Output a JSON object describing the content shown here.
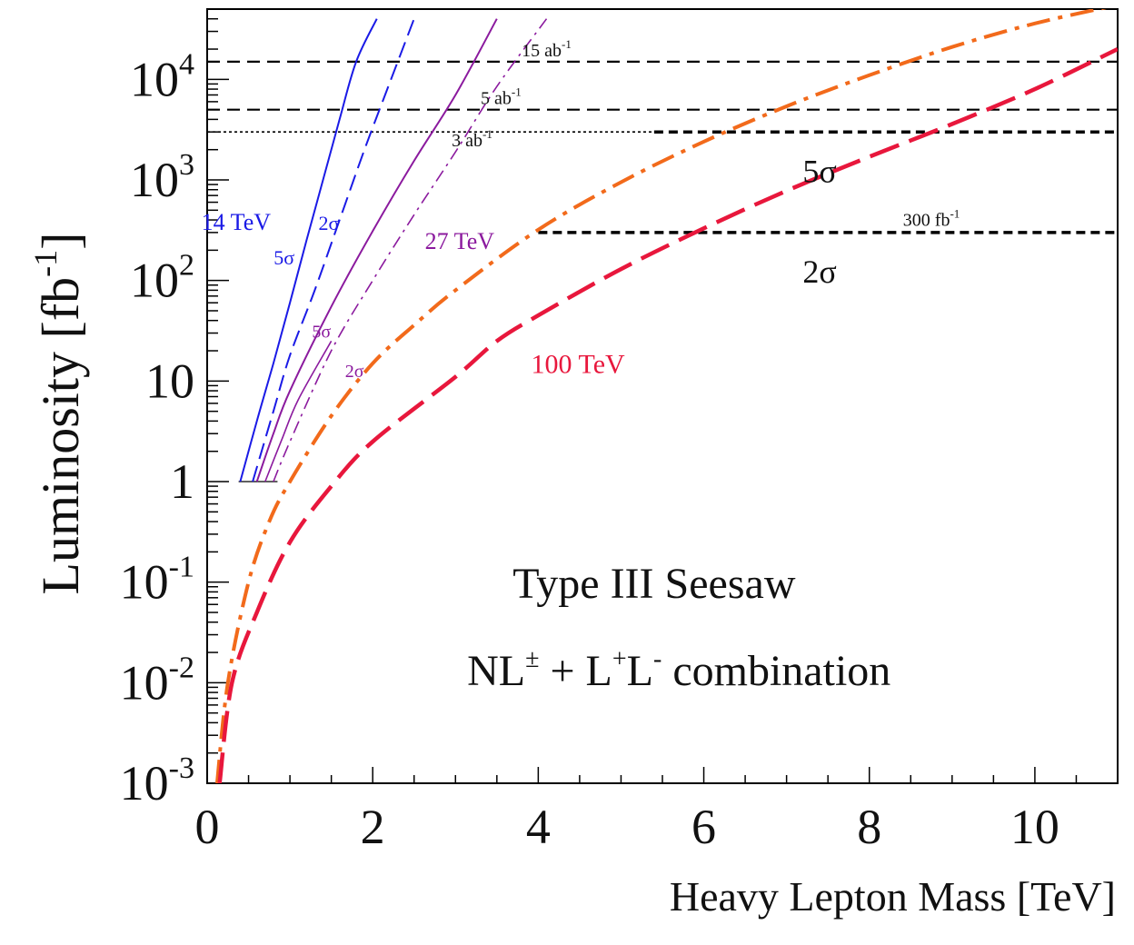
{
  "chart_data": {
    "type": "line",
    "title": "",
    "xlabel": "Heavy Lepton Mass [TeV]",
    "ylabel": "Luminosity [fb⁻¹]",
    "yscale": "log",
    "xlim": [
      0,
      11
    ],
    "ylim": [
      0.001,
      50000
    ],
    "x_ticks": [
      {
        "value": 0,
        "label": "0"
      },
      {
        "value": 2,
        "label": "2"
      },
      {
        "value": 4,
        "label": "4"
      },
      {
        "value": 6,
        "label": "6"
      },
      {
        "value": 8,
        "label": "8"
      },
      {
        "value": 10,
        "label": "10"
      }
    ],
    "y_ticks": [
      {
        "value": 0.001,
        "base": "10",
        "exp": "-3"
      },
      {
        "value": 0.01,
        "base": "10",
        "exp": "-2"
      },
      {
        "value": 0.1,
        "base": "10",
        "exp": "-1"
      },
      {
        "value": 1,
        "base": "1",
        "exp": ""
      },
      {
        "value": 10,
        "base": "10",
        "exp": ""
      },
      {
        "value": 100,
        "base": "10",
        "exp": "2"
      },
      {
        "value": 1000,
        "base": "10",
        "exp": "3"
      },
      {
        "value": 10000,
        "base": "10",
        "exp": "4"
      }
    ],
    "ylabel_parts": {
      "main": "Luminosity [fb",
      "exp": "-1",
      "close": "]"
    },
    "xlabel_text": "Heavy Lepton Mass [TeV]",
    "reference_lines": [
      {
        "y": 15000,
        "x_range": [
          0,
          11
        ],
        "style": "dashed",
        "label": "15 ab",
        "label_exp": "-1",
        "label_x": 4.1,
        "label_y": 17000
      },
      {
        "y": 5000,
        "x_range": [
          0,
          11
        ],
        "style": "dashed",
        "label": "5 ab",
        "label_exp": "-1",
        "label_x": 3.55,
        "label_y": 5700
      },
      {
        "y": 3000,
        "x_range": [
          0,
          5.4
        ],
        "style": "dotted",
        "label": "",
        "label_exp": "",
        "label_x": 0,
        "label_y": 0
      },
      {
        "y": 3000,
        "x_range": [
          5.4,
          11
        ],
        "style": "thickdash",
        "label": "3 ab",
        "label_exp": "-1",
        "label_x": 3.2,
        "label_y": 2150
      },
      {
        "y": 300,
        "x_range": [
          4.0,
          11
        ],
        "style": "thickdash",
        "label": "300 fb",
        "label_exp": "-1",
        "label_x": 8.75,
        "label_y": 350
      }
    ],
    "series": [
      {
        "name": "14 TeV 5σ",
        "color": "#1a1ae6",
        "dash": "solid",
        "width": 2,
        "x": [
          0.4,
          0.6,
          0.8,
          1.0,
          1.2,
          1.4,
          1.6,
          1.8,
          2.05
        ],
        "y": [
          1,
          4,
          15,
          60,
          250,
          1000,
          4000,
          15000,
          40000
        ]
      },
      {
        "name": "14 TeV 2σ",
        "color": "#1a1ae6",
        "dash": "longdash",
        "width": 2,
        "x": [
          0.55,
          0.8,
          1.0,
          1.3,
          1.6,
          1.9,
          2.2,
          2.5
        ],
        "y": [
          1,
          5,
          18,
          80,
          400,
          2000,
          9000,
          40000
        ]
      },
      {
        "name": "27 TeV 5σ",
        "color": "#8b1a9e",
        "dash": "solid",
        "width": 2,
        "x": [
          0.6,
          0.8,
          1.0,
          1.5,
          2.0,
          2.5,
          3.0,
          3.5
        ],
        "y": [
          1,
          3,
          8,
          55,
          310,
          1550,
          7000,
          40000
        ]
      },
      {
        "name": "27 TeV 2σ",
        "color": "#8b1a9e",
        "dash": "dashdot",
        "width": 1.6,
        "x": [
          0.8,
          1.0,
          1.5,
          2.0,
          2.5,
          3.0,
          3.5,
          4.1
        ],
        "y": [
          1,
          2.5,
          20,
          100,
          450,
          1900,
          8500,
          40000
        ]
      },
      {
        "name": "27 TeV 2σ (band lower)",
        "color": "#8b1a9e",
        "dash": "solid",
        "width": 1.6,
        "x": [
          0.7,
          0.9,
          1.1,
          1.5
        ],
        "y": [
          1,
          2.6,
          6.5,
          25
        ]
      },
      {
        "name": "100 TeV 5σ",
        "color": "#f26a1b",
        "dash": "dashdot",
        "width": 4,
        "x": [
          0.12,
          0.25,
          0.5,
          0.75,
          1.0,
          1.5,
          2.0,
          2.5,
          3.0,
          4.0,
          5.0,
          6.0,
          7.0,
          8.0,
          9.0,
          10.0,
          11.0
        ],
        "y": [
          0.001,
          0.01,
          0.1,
          0.4,
          1.0,
          4.5,
          15,
          36,
          80,
          320,
          950,
          2400,
          5400,
          11000,
          21000,
          36000,
          55000
        ]
      },
      {
        "name": "100 TeV 2σ",
        "color": "#e8173c",
        "dash": "longdash",
        "width": 4.5,
        "x": [
          0.15,
          0.3,
          0.6,
          1.0,
          1.5,
          2.0,
          3.0,
          3.5,
          4.0,
          5.0,
          6.0,
          7.0,
          8.0,
          9.0,
          10.0,
          11.0
        ],
        "y": [
          0.001,
          0.01,
          0.05,
          0.25,
          0.9,
          2.5,
          11,
          25,
          45,
          130,
          330,
          780,
          1700,
          3600,
          8000,
          20000
        ]
      }
    ],
    "annotations": [
      {
        "text": "14 TeV",
        "x": 0.35,
        "y": 320,
        "color": "#1a1ae6",
        "size": 26,
        "anchor": "middle"
      },
      {
        "text": "2σ",
        "x": 1.47,
        "y": 320,
        "color": "#1a1ae6",
        "size": 22,
        "anchor": "middle"
      },
      {
        "text": "5σ",
        "x": 0.93,
        "y": 145,
        "color": "#1a1ae6",
        "size": 22,
        "anchor": "middle"
      },
      {
        "text": "27 TeV",
        "x": 3.05,
        "y": 205,
        "color": "#8b1a9e",
        "size": 26,
        "anchor": "middle"
      },
      {
        "text": "5σ",
        "x": 1.38,
        "y": 27,
        "color": "#8b1a9e",
        "size": 20,
        "anchor": "middle"
      },
      {
        "text": "2σ",
        "x": 1.78,
        "y": 11,
        "color": "#8b1a9e",
        "size": 20,
        "anchor": "middle"
      },
      {
        "text": "100 TeV",
        "x": 4.48,
        "y": 12,
        "color": "#e8173c",
        "size": 30,
        "anchor": "middle"
      },
      {
        "text": "5σ",
        "x": 7.4,
        "y": 950,
        "color": "#111111",
        "size": 36,
        "anchor": "middle"
      },
      {
        "text": "2σ",
        "x": 7.4,
        "y": 95,
        "color": "#111111",
        "size": 36,
        "anchor": "middle"
      },
      {
        "text": "Type III Seesaw",
        "x": 5.4,
        "y": 0.07,
        "color": "#111111",
        "size": 48,
        "anchor": "middle"
      }
    ],
    "combo_label": {
      "x": 5.7,
      "y": 0.0095,
      "parts": [
        {
          "text": "NL",
          "sup": false
        },
        {
          "text": "±",
          "sup": true
        },
        {
          "text": " + L",
          "sup": false
        },
        {
          "text": "+",
          "sup": true
        },
        {
          "text": "L",
          "sup": false
        },
        {
          "text": "-",
          "sup": true
        },
        {
          "text": " combination",
          "sup": false
        }
      ]
    }
  }
}
